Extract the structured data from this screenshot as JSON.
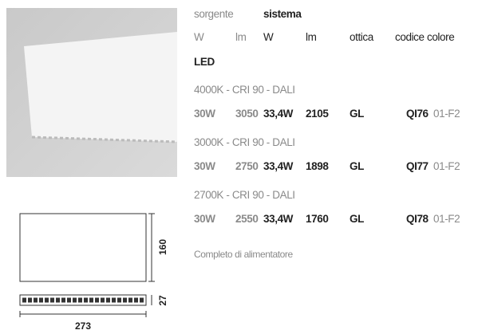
{
  "header": {
    "sorgente": "sorgente",
    "sistema": "sistema",
    "columns": [
      "W",
      "lm",
      "W",
      "lm",
      "ottica",
      "codice colore"
    ]
  },
  "section": "LED",
  "variants": [
    {
      "label": "4000K - CRI 90 - DALI",
      "cells": [
        "30W",
        "3050",
        "33,4W",
        "2105",
        "GL"
      ],
      "code": "QI76",
      "suffix": "01-F2"
    },
    {
      "label": "3000K - CRI 90 - DALI",
      "cells": [
        "30W",
        "2750",
        "33,4W",
        "1898",
        "GL"
      ],
      "code": "QI77",
      "suffix": "01-F2"
    },
    {
      "label": "2700K - CRI 90 - DALI",
      "cells": [
        "30W",
        "2550",
        "33,4W",
        "1760",
        "GL"
      ],
      "code": "QI78",
      "suffix": "01-F2"
    }
  ],
  "note": "Completo di alimentatore",
  "dimensions": {
    "height": "160",
    "thickness": "27",
    "width": "273"
  }
}
